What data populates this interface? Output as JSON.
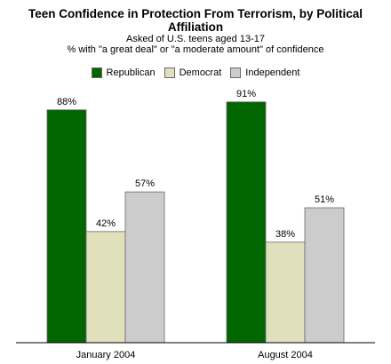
{
  "chart_data": {
    "type": "bar",
    "title": "Teen Confidence in Protection From Terrorism, by Political Affiliation",
    "subtitle_lines": [
      "Asked of U.S. teens aged 13-17",
      "% with \"a great deal\" or \"a moderate amount\" of confidence"
    ],
    "categories": [
      "January 2004",
      "August 2004"
    ],
    "series": [
      {
        "name": "Republican",
        "color": "#006600",
        "values": [
          88,
          91
        ],
        "labels": [
          "88%",
          "91%"
        ]
      },
      {
        "name": "Democrat",
        "color": "#e0e0bd",
        "values": [
          42,
          38
        ],
        "labels": [
          "42%",
          "38%"
        ]
      },
      {
        "name": "Independent",
        "color": "#cccccc",
        "values": [
          57,
          51
        ],
        "labels": [
          "57%",
          "51%"
        ]
      }
    ],
    "ylim": [
      0,
      100
    ],
    "legend_position": "top-center",
    "grid": false
  }
}
